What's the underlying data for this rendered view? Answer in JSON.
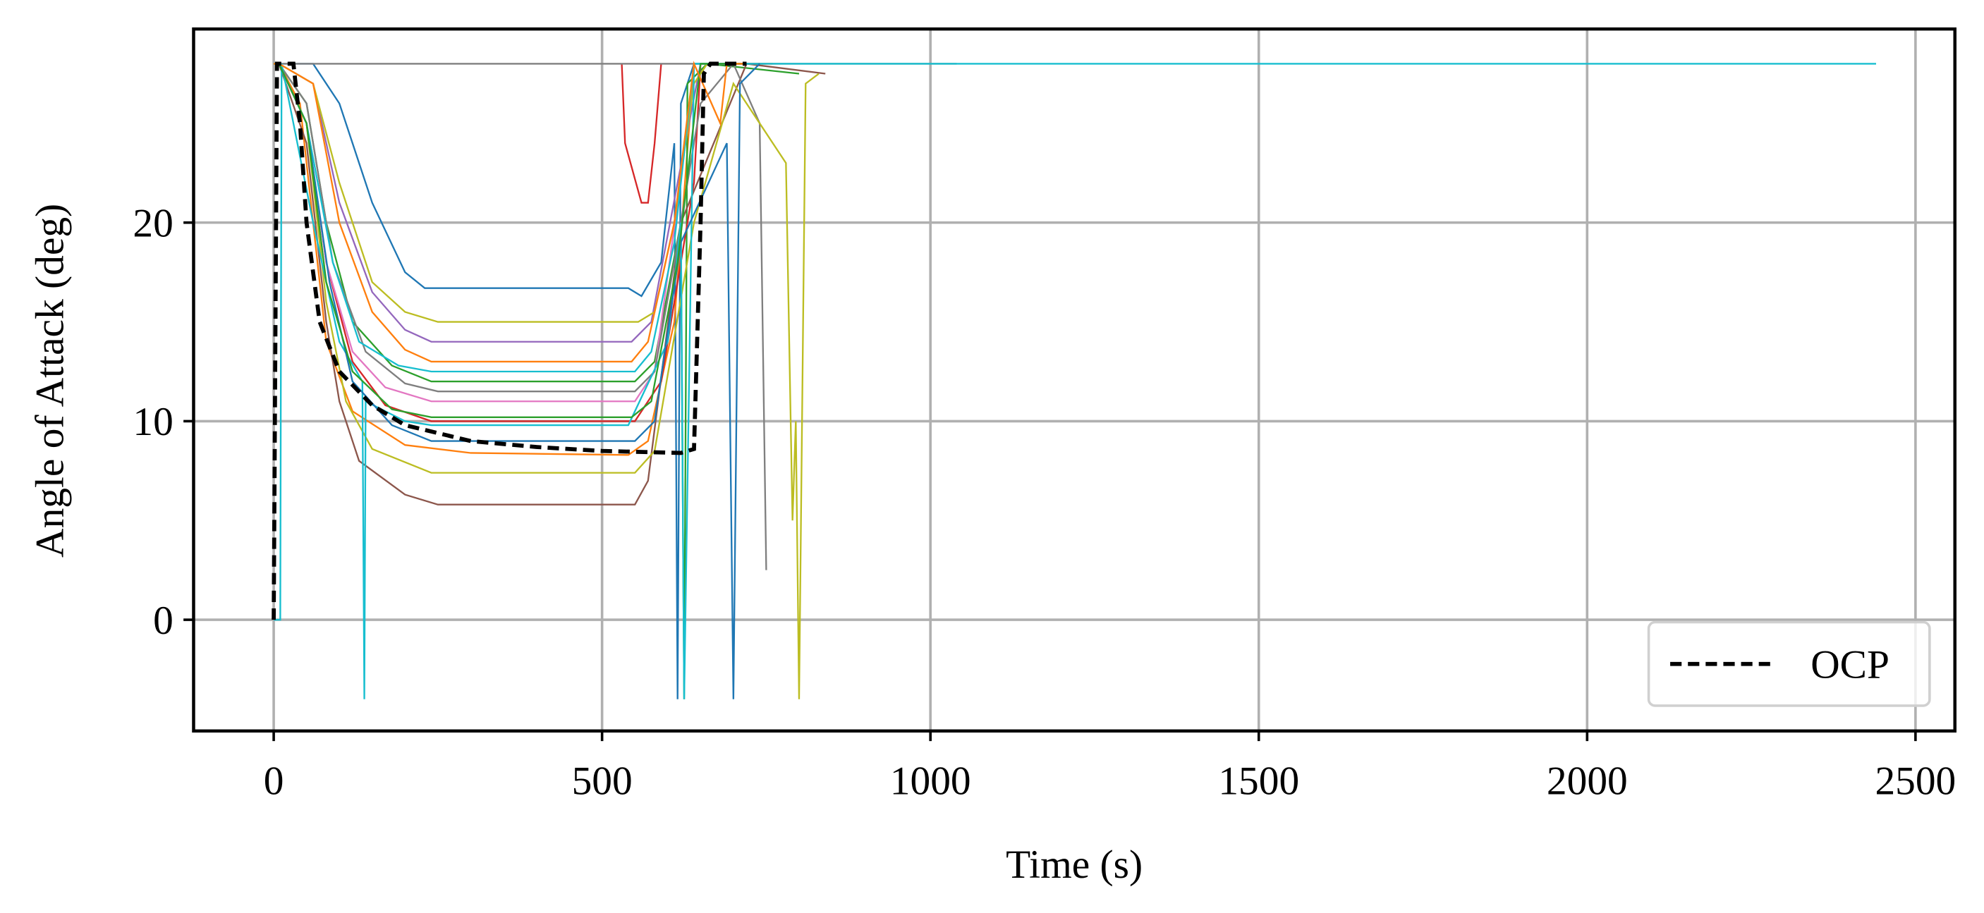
{
  "chart_data": {
    "type": "line",
    "xlabel": "Time (s)",
    "ylabel": "Angle of Attack (deg)",
    "xlim": [
      -122,
      2560
    ],
    "ylim": [
      -5.6,
      29.75
    ],
    "xticks": [
      0,
      500,
      1000,
      1500,
      2000,
      2500
    ],
    "yticks": [
      0,
      10,
      20
    ],
    "grid": true,
    "legend": "lower right",
    "series": [
      {
        "color": "#1f77b4",
        "x": [
          0,
          8,
          60,
          100,
          150,
          200,
          230,
          540,
          560,
          590,
          610,
          615,
          620,
          640,
          700
        ],
        "values": [
          28,
          28,
          28,
          26,
          21,
          17.5,
          16.7,
          16.7,
          16.3,
          18,
          24,
          -4,
          26,
          28,
          28
        ]
      },
      {
        "color": "#ff7f0e",
        "x": [
          0,
          8,
          40,
          60,
          80,
          120,
          200,
          300,
          540,
          570,
          610,
          640,
          760
        ],
        "values": [
          28,
          28,
          26,
          20,
          14,
          10.5,
          8.8,
          8.4,
          8.3,
          9,
          15,
          28,
          28
        ]
      },
      {
        "color": "#2ca02c",
        "x": [
          0,
          8,
          50,
          80,
          120,
          180,
          240,
          550,
          580,
          620,
          625,
          630,
          660,
          800
        ],
        "values": [
          28,
          28,
          26,
          20,
          15,
          12.8,
          12,
          12,
          13,
          20,
          -4,
          27,
          28,
          27.5
        ]
      },
      {
        "color": "#d62728",
        "x": [
          0,
          8,
          50,
          80,
          120,
          170,
          240,
          550,
          590,
          640,
          650,
          740
        ],
        "values": [
          28,
          28,
          25,
          18,
          13,
          10.8,
          10,
          10,
          12,
          22,
          28,
          28
        ]
      },
      {
        "color": "#d62728",
        "x": [
          530,
          535,
          560,
          570,
          580,
          590
        ],
        "values": [
          28,
          24,
          21,
          21,
          24,
          28
        ]
      },
      {
        "color": "#9467bd",
        "x": [
          0,
          8,
          60,
          100,
          150,
          200,
          240,
          545,
          575,
          615,
          650,
          700
        ],
        "values": [
          28,
          28,
          27,
          21,
          16.5,
          14.6,
          14,
          14,
          15,
          22,
          28,
          28
        ]
      },
      {
        "color": "#8c564b",
        "x": [
          0,
          8,
          50,
          80,
          100,
          130,
          200,
          250,
          550,
          570,
          620,
          720,
          840
        ],
        "values": [
          28,
          28,
          24,
          15,
          11,
          8,
          6.3,
          5.8,
          5.8,
          7,
          20,
          28,
          27.5
        ]
      },
      {
        "color": "#e377c2",
        "x": [
          0,
          8,
          50,
          80,
          120,
          170,
          240,
          550,
          580,
          615,
          640,
          700
        ],
        "values": [
          28,
          28,
          25,
          18,
          13.5,
          11.7,
          11,
          11,
          12.5,
          21,
          28,
          28
        ]
      },
      {
        "color": "#7f7f7f",
        "x": [
          0,
          5,
          1040
        ],
        "values": [
          28,
          28,
          28
        ]
      },
      {
        "color": "#7f7f7f",
        "x": [
          0,
          8,
          50,
          90,
          140,
          200,
          250,
          550,
          580,
          610,
          650,
          700,
          740,
          750
        ],
        "values": [
          28,
          28,
          26,
          18,
          13.5,
          11.9,
          11.5,
          11.5,
          12.5,
          18,
          26,
          28,
          25,
          2.5
        ]
      },
      {
        "color": "#bcbd22",
        "x": [
          0,
          8,
          50,
          80,
          110,
          150,
          240,
          550,
          580,
          640,
          700,
          780,
          790,
          795,
          800,
          810,
          830
        ],
        "values": [
          28,
          28,
          25,
          16,
          11,
          8.6,
          7.4,
          7.4,
          8.5,
          20,
          27,
          23,
          5,
          10,
          -4,
          27,
          27.5
        ]
      },
      {
        "color": "#bcbd22",
        "x": [
          0,
          8,
          60,
          100,
          150,
          200,
          250,
          555,
          580,
          610,
          640,
          660
        ],
        "values": [
          28,
          28,
          27,
          22,
          17,
          15.5,
          15,
          15,
          15.5,
          20,
          27,
          28
        ]
      },
      {
        "color": "#17becf",
        "x": [
          0,
          10,
          12,
          60,
          100,
          135,
          138,
          140,
          200,
          240,
          540,
          600,
          620,
          625,
          640,
          660,
          2440
        ],
        "values": [
          0,
          0,
          28,
          20,
          14,
          12,
          -4,
          11,
          10,
          9.8,
          9.8,
          14,
          20,
          -4,
          28,
          28,
          28
        ]
      },
      {
        "color": "#17becf",
        "x": [
          0,
          8,
          50,
          90,
          130,
          190,
          240,
          550,
          575,
          610,
          640,
          680
        ],
        "values": [
          28,
          28,
          25,
          18,
          14,
          12.8,
          12.5,
          12.5,
          13.5,
          19,
          28,
          28
        ]
      },
      {
        "color": "#1f77b4",
        "x": [
          0,
          8,
          50,
          85,
          120,
          180,
          240,
          550,
          580,
          620,
          690,
          700,
          710,
          740
        ],
        "values": [
          28,
          28,
          25,
          17,
          12,
          9.8,
          9,
          9,
          10,
          19,
          24,
          -4,
          27,
          28
        ]
      },
      {
        "color": "#2ca02c",
        "x": [
          0,
          8,
          50,
          80,
          120,
          180,
          240,
          545,
          575,
          615,
          650,
          720
        ],
        "values": [
          28,
          28,
          25,
          17,
          12.5,
          10.6,
          10.2,
          10.2,
          11,
          18,
          28,
          28
        ]
      },
      {
        "color": "#ff7f0e",
        "x": [
          0,
          8,
          60,
          100,
          150,
          200,
          240,
          545,
          570,
          610,
          640,
          680,
          690,
          720
        ],
        "values": [
          28,
          28,
          27,
          20,
          15.5,
          13.6,
          13,
          13,
          14,
          20,
          28,
          25,
          28,
          28
        ]
      },
      {
        "name": "OCP",
        "color": "#000000",
        "dashed": true,
        "x": [
          0,
          5,
          30,
          40,
          50,
          70,
          100,
          150,
          200,
          300,
          400,
          500,
          620,
          640,
          650,
          655,
          665,
          720
        ],
        "values": [
          0,
          28,
          28,
          25,
          20,
          15,
          12.5,
          10.8,
          9.8,
          9,
          8.7,
          8.5,
          8.4,
          8.6,
          20,
          27.5,
          28,
          28
        ]
      }
    ]
  }
}
